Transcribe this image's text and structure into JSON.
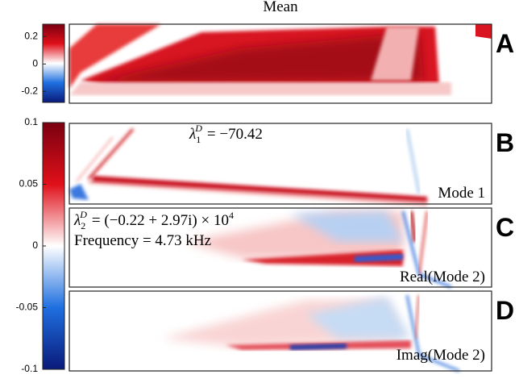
{
  "title": "Mean",
  "colorbars": [
    {
      "lim": [
        -0.28,
        0.29
      ],
      "ticks": [
        0.2,
        0,
        -0.2
      ]
    },
    {
      "lim": [
        -0.1,
        0.1
      ],
      "ticks": [
        0.1,
        0.05,
        0,
        -0.05,
        -0.1
      ]
    }
  ],
  "panels": [
    {
      "letter": "A"
    },
    {
      "letter": "B",
      "label": "Mode 1",
      "eigenvalue": {
        "symbol": "λ",
        "sub": "1",
        "sup": "D",
        "rhs": "= −70.42"
      }
    },
    {
      "letter": "C",
      "label": "Real(Mode 2)",
      "eigenvalue": {
        "symbol": "λ",
        "sub": "2",
        "sup": "D",
        "rhs": "= (−0.22 + 2.97i) × 10",
        "power": "4"
      },
      "frequency": "Frequency = 4.73 kHz"
    },
    {
      "letter": "D",
      "label": "Imag(Mode 2)"
    }
  ]
}
